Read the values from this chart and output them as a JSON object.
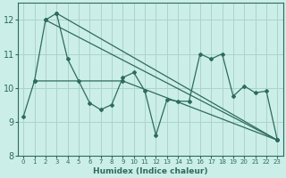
{
  "xlabel": "Humidex (Indice chaleur)",
  "bg_color": "#cceee8",
  "grid_color": "#aad4cc",
  "line_color": "#2d6b5e",
  "xlim": [
    -0.5,
    23.5
  ],
  "ylim": [
    8.0,
    12.5
  ],
  "yticks": [
    8,
    9,
    10,
    11,
    12
  ],
  "xticks": [
    0,
    1,
    2,
    3,
    4,
    5,
    6,
    7,
    8,
    9,
    10,
    11,
    12,
    13,
    14,
    15,
    16,
    17,
    18,
    19,
    20,
    21,
    22,
    23
  ],
  "line1": {
    "x": [
      0,
      1,
      2,
      3,
      4,
      5,
      6,
      7,
      8,
      9,
      10,
      11,
      12,
      13,
      14,
      15,
      16,
      17,
      18,
      19,
      20,
      21,
      22,
      23
    ],
    "y": [
      9.15,
      10.2,
      12.0,
      12.2,
      10.85,
      10.2,
      9.55,
      9.35,
      9.5,
      10.3,
      10.45,
      9.9,
      8.6,
      9.65,
      9.6,
      9.6,
      11.0,
      10.85,
      11.0,
      9.75,
      10.05,
      9.85,
      9.9,
      8.45
    ]
  },
  "line2": {
    "x": [
      1,
      9,
      23
    ],
    "y": [
      10.2,
      10.2,
      8.45
    ]
  },
  "line3": {
    "x": [
      2,
      23
    ],
    "y": [
      12.0,
      8.45
    ]
  },
  "line4": {
    "x": [
      3,
      23
    ],
    "y": [
      12.2,
      8.45
    ]
  }
}
